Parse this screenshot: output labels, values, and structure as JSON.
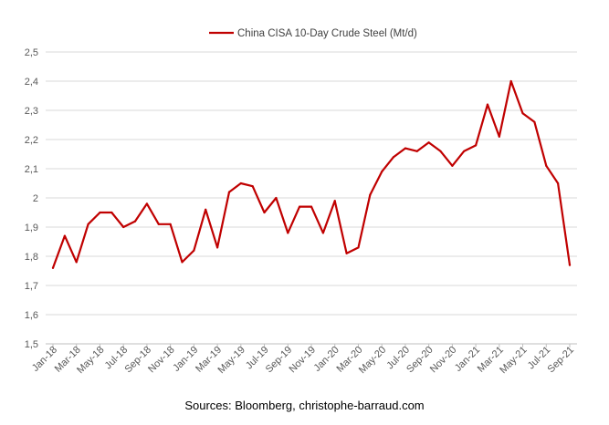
{
  "chart_data": {
    "type": "line",
    "title": "",
    "xlabel": "",
    "ylabel": "",
    "ylim": [
      1.5,
      2.5
    ],
    "yticks": [
      "1,5",
      "1,6",
      "1,7",
      "1,8",
      "1,9",
      "2",
      "2,1",
      "2,2",
      "2,3",
      "2,4",
      "2,5"
    ],
    "grid": "horizontal",
    "legend_position": "top-center",
    "x_labels": [
      "Jan-18",
      "Mar-18",
      "May-18",
      "Jul-18",
      "Sep-18",
      "Nov-18",
      "Jan-19",
      "Mar-19",
      "May-19",
      "Jul-19",
      "Sep-19",
      "Nov-19",
      "Jan-20",
      "Mar-20",
      "May-20",
      "Jul-20",
      "Sep-20",
      "Nov-20",
      "Jan-21",
      "Mar-21",
      "May-21",
      "Jul-21",
      "Sep-21"
    ],
    "series": [
      {
        "name": "China CISA 10-Day Crude Steel (Mt/d)",
        "color": "#C00000",
        "values": [
          1.76,
          1.87,
          1.78,
          1.91,
          1.95,
          1.95,
          1.9,
          1.92,
          1.98,
          1.91,
          1.91,
          1.78,
          1.82,
          1.96,
          1.83,
          2.02,
          2.05,
          2.04,
          1.95,
          2.0,
          1.88,
          1.97,
          1.97,
          1.88,
          1.99,
          1.81,
          1.83,
          2.01,
          2.09,
          2.14,
          2.17,
          2.16,
          2.19,
          2.16,
          2.11,
          2.16,
          2.18,
          2.32,
          2.21,
          2.4,
          2.29,
          2.26,
          2.11,
          2.05,
          1.77
        ]
      }
    ]
  },
  "footer": {
    "source": "Sources: Bloomberg, christophe-barraud.com"
  }
}
